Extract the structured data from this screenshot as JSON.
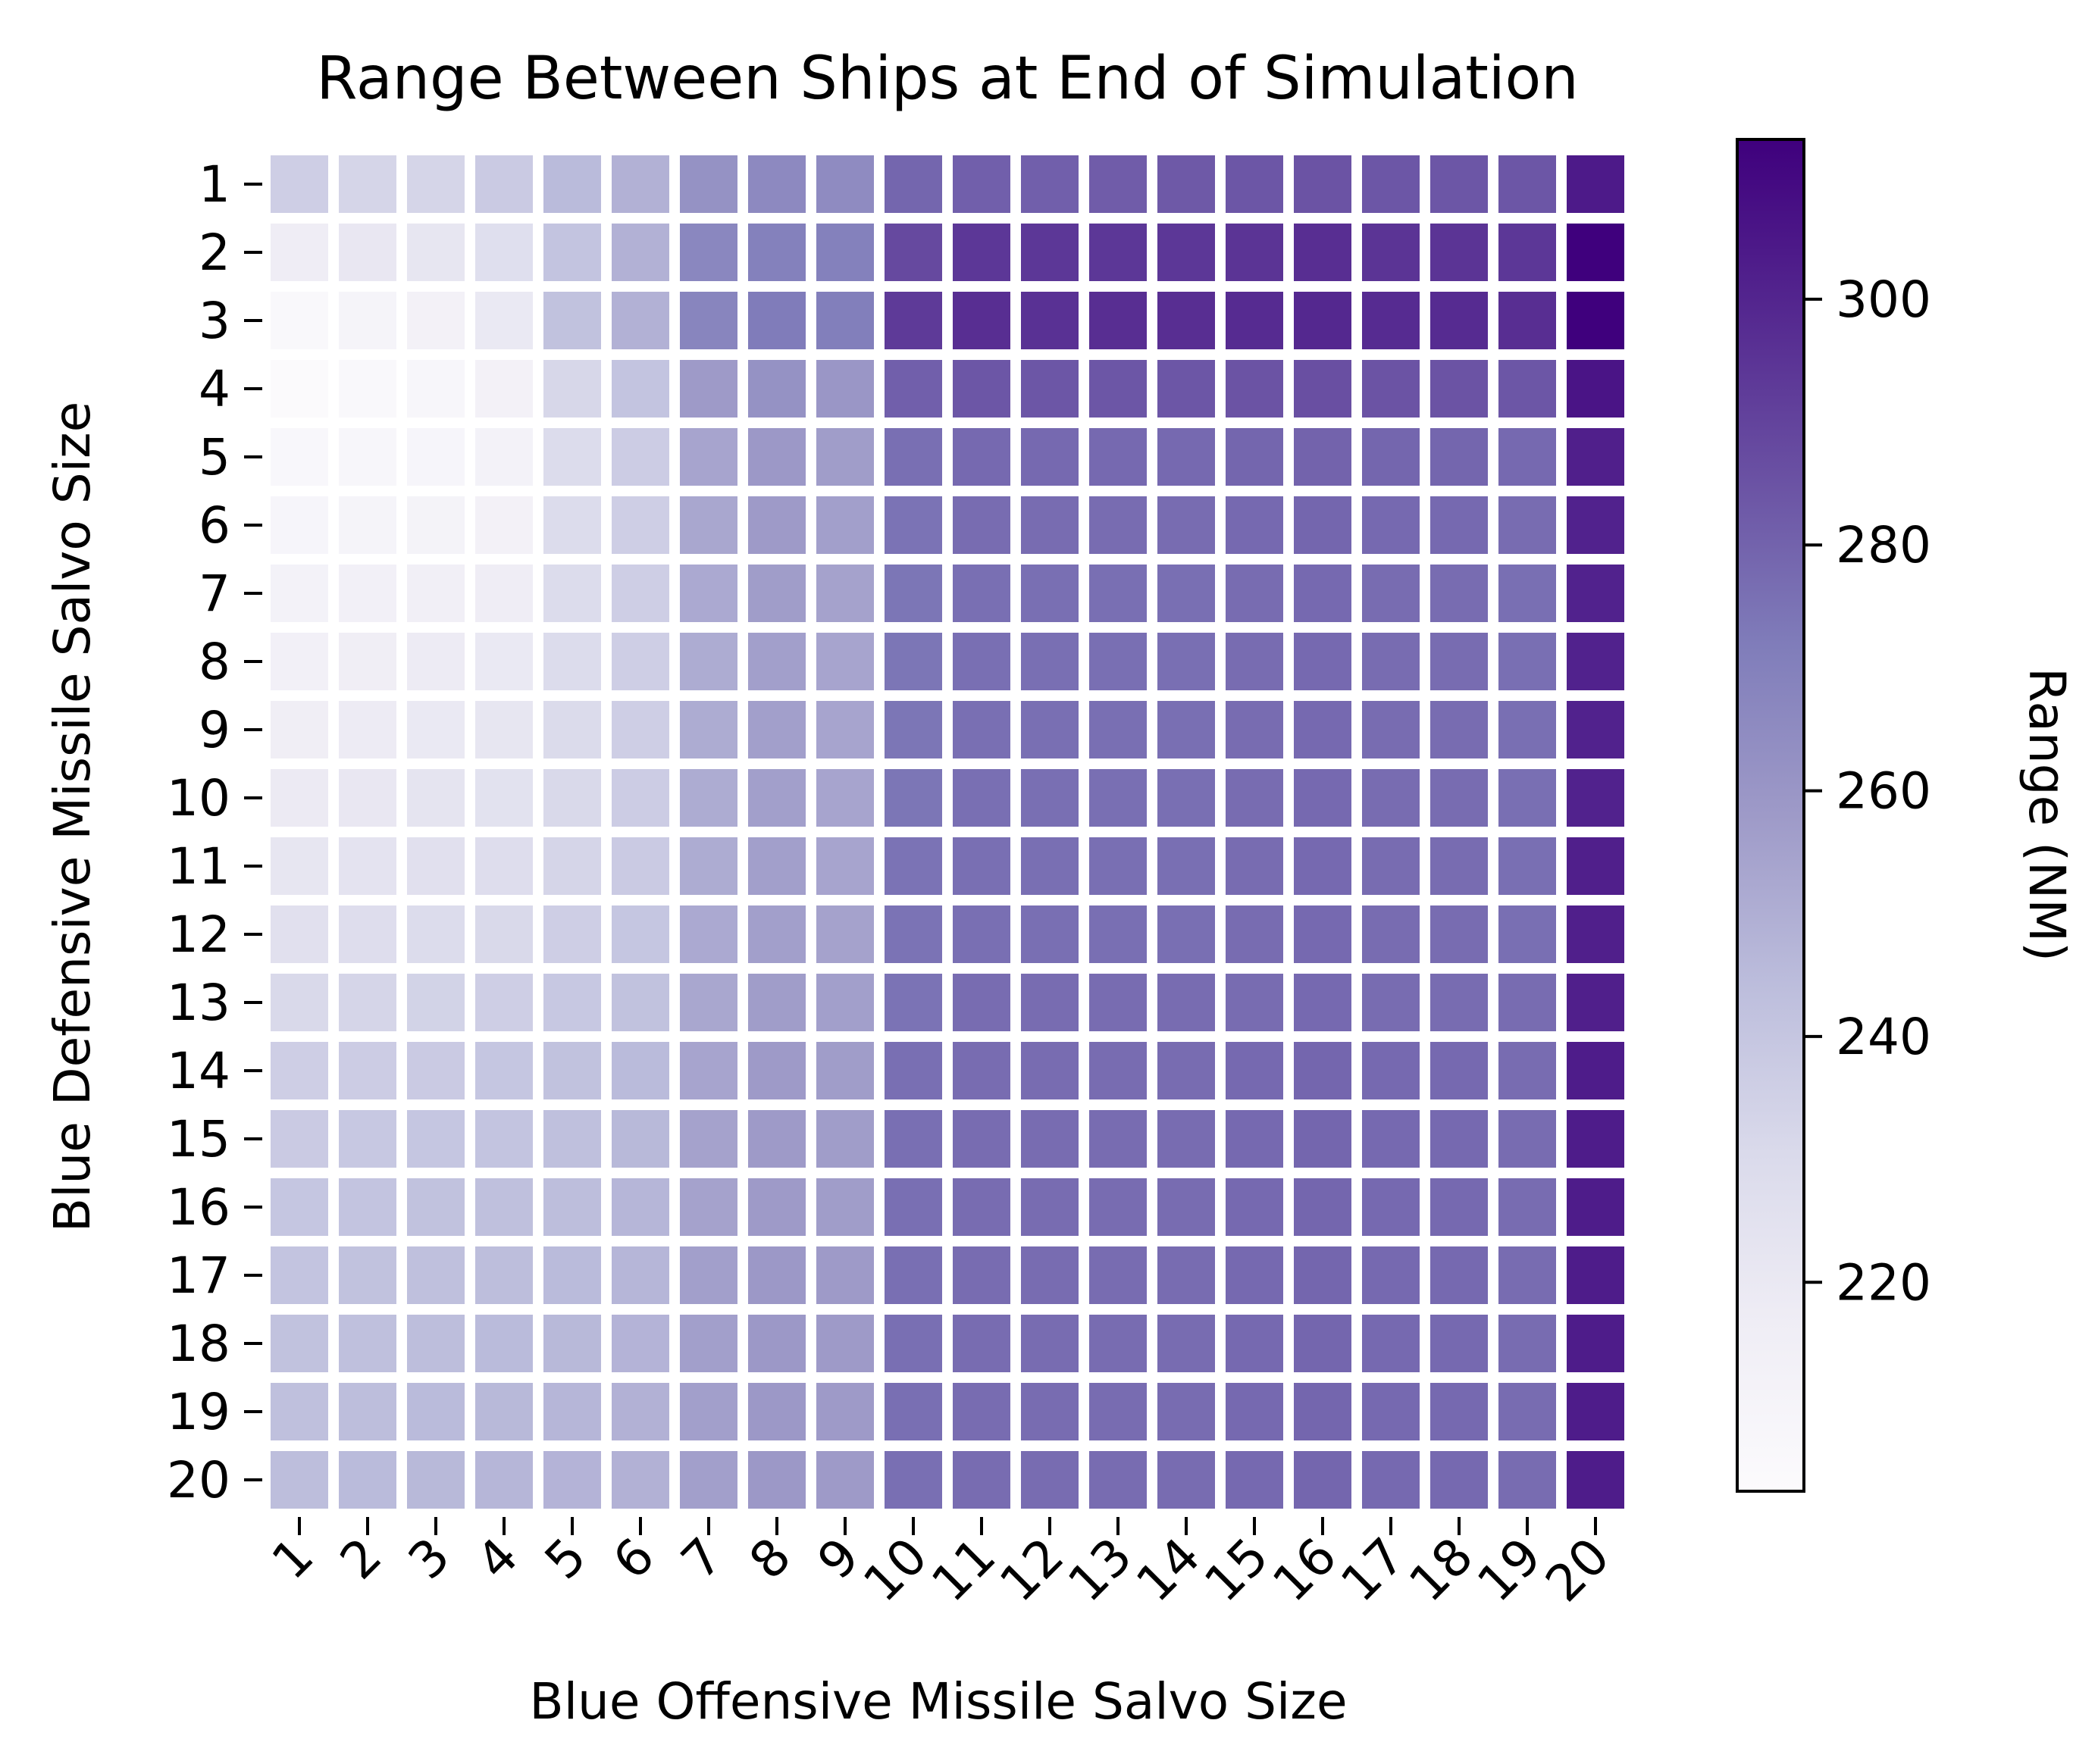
{
  "chart_data": {
    "type": "heatmap",
    "title": "Range Between Ships at End of Simulation",
    "xlabel": "Blue Offensive Missile Salvo Size",
    "ylabel": "Blue Defensive Missile Salvo Size",
    "x_categories": [
      "1",
      "2",
      "3",
      "4",
      "5",
      "6",
      "7",
      "8",
      "9",
      "10",
      "11",
      "12",
      "13",
      "14",
      "15",
      "16",
      "17",
      "18",
      "19",
      "20"
    ],
    "y_categories": [
      "1",
      "2",
      "3",
      "4",
      "5",
      "6",
      "7",
      "8",
      "9",
      "10",
      "11",
      "12",
      "13",
      "14",
      "15",
      "16",
      "17",
      "18",
      "19",
      "20"
    ],
    "colorbar": {
      "label": "Range (NM)",
      "range": [
        203,
        313
      ],
      "ticks": [
        220,
        240,
        260,
        280,
        300
      ],
      "tick_labels": [
        "220",
        "240",
        "260",
        "280",
        "300"
      ],
      "colormap": "Purples"
    },
    "grid": false,
    "legend": "colorbar-right",
    "values": [
      [
        236,
        233,
        233,
        238,
        245,
        249,
        262,
        266,
        265,
        279,
        281,
        281,
        282,
        283,
        284,
        285,
        284,
        284,
        284,
        304
      ],
      [
        217,
        221,
        222,
        227,
        241,
        249,
        267,
        270,
        270,
        288,
        294,
        294,
        294,
        294,
        295,
        297,
        295,
        295,
        294,
        313
      ],
      [
        206,
        210,
        213,
        220,
        242,
        249,
        268,
        272,
        271,
        293,
        297,
        296,
        297,
        297,
        298,
        299,
        298,
        298,
        297,
        313
      ],
      [
        204,
        206,
        208,
        213,
        232,
        241,
        258,
        262,
        260,
        281,
        284,
        284,
        284,
        284,
        285,
        286,
        285,
        285,
        284,
        306
      ],
      [
        207,
        208,
        209,
        212,
        229,
        237,
        254,
        259,
        257,
        276,
        278,
        278,
        278,
        278,
        279,
        280,
        279,
        279,
        278,
        302
      ],
      [
        209,
        210,
        211,
        213,
        229,
        236,
        253,
        258,
        256,
        275,
        277,
        277,
        277,
        277,
        278,
        279,
        278,
        278,
        277,
        301
      ],
      [
        212,
        214,
        215,
        217,
        229,
        236,
        252,
        257,
        255,
        274,
        276,
        276,
        276,
        276,
        277,
        278,
        277,
        277,
        276,
        301
      ],
      [
        214,
        216,
        218,
        220,
        229,
        236,
        251,
        256,
        254,
        274,
        276,
        276,
        276,
        276,
        277,
        278,
        277,
        277,
        276,
        301
      ],
      [
        216,
        218,
        220,
        222,
        230,
        236,
        251,
        256,
        254,
        274,
        276,
        276,
        276,
        276,
        277,
        278,
        277,
        277,
        276,
        301
      ],
      [
        219,
        221,
        223,
        225,
        231,
        237,
        251,
        256,
        254,
        274,
        276,
        276,
        276,
        276,
        277,
        278,
        277,
        277,
        276,
        301
      ],
      [
        222,
        224,
        226,
        228,
        233,
        238,
        251,
        256,
        254,
        275,
        276,
        276,
        276,
        276,
        277,
        278,
        277,
        277,
        276,
        302
      ],
      [
        226,
        228,
        229,
        231,
        236,
        240,
        252,
        256,
        255,
        275,
        276,
        276,
        276,
        276,
        277,
        278,
        277,
        277,
        276,
        302
      ],
      [
        231,
        233,
        234,
        236,
        239,
        242,
        253,
        257,
        256,
        275,
        277,
        277,
        277,
        277,
        277,
        278,
        277,
        277,
        277,
        302
      ],
      [
        236,
        237,
        238,
        240,
        242,
        245,
        254,
        258,
        257,
        276,
        277,
        277,
        277,
        277,
        278,
        279,
        278,
        278,
        277,
        303
      ],
      [
        238,
        239,
        240,
        241,
        243,
        246,
        255,
        258,
        257,
        276,
        277,
        277,
        277,
        277,
        278,
        279,
        278,
        278,
        277,
        303
      ],
      [
        240,
        241,
        242,
        243,
        244,
        247,
        255,
        258,
        257,
        276,
        277,
        277,
        277,
        277,
        278,
        279,
        278,
        278,
        277,
        303
      ],
      [
        241,
        242,
        243,
        244,
        245,
        247,
        256,
        259,
        258,
        276,
        277,
        277,
        277,
        277,
        278,
        279,
        278,
        278,
        277,
        303
      ],
      [
        242,
        243,
        244,
        245,
        246,
        248,
        256,
        259,
        258,
        276,
        277,
        277,
        277,
        277,
        278,
        279,
        278,
        278,
        277,
        303
      ],
      [
        243,
        244,
        245,
        246,
        247,
        249,
        256,
        259,
        258,
        276,
        277,
        277,
        277,
        277,
        278,
        279,
        278,
        278,
        277,
        303
      ],
      [
        244,
        245,
        246,
        247,
        248,
        249,
        256,
        259,
        258,
        276,
        277,
        277,
        277,
        277,
        278,
        279,
        278,
        278,
        277,
        303
      ]
    ]
  }
}
